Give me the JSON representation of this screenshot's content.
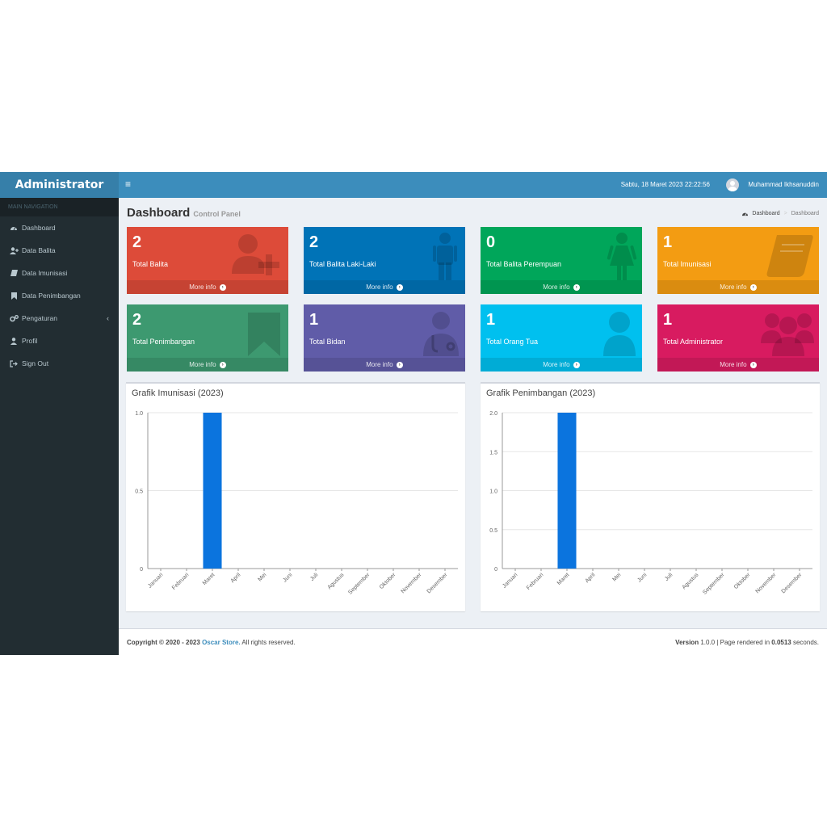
{
  "sidebar": {
    "brand": "Administrator",
    "header": "MAIN NAVIGATION",
    "items": [
      {
        "label": "Dashboard",
        "icon": "dashboard-icon"
      },
      {
        "label": "Data Balita",
        "icon": "user-plus-icon"
      },
      {
        "label": "Data Imunisasi",
        "icon": "book-icon"
      },
      {
        "label": "Data Penimbangan",
        "icon": "bookmark-icon"
      },
      {
        "label": "Pengaturan",
        "icon": "gears-icon"
      },
      {
        "label": "Profil",
        "icon": "user-icon"
      },
      {
        "label": "Sign Out",
        "icon": "sign-out-icon"
      }
    ]
  },
  "header": {
    "toggle": "≡",
    "datetime": "Sabtu, 18 Maret 2023 22:22:56",
    "user": "Muhammad Ikhsanuddin"
  },
  "page": {
    "title": "Dashboard",
    "subtitle": "Control Panel",
    "breadcrumb_home": "Dashboard",
    "breadcrumb_current": "Dashboard"
  },
  "boxes": [
    {
      "value": "2",
      "label": "Total Balita",
      "more": "More info",
      "color": "#dd4b39",
      "icon": "user-plus-icon"
    },
    {
      "value": "2",
      "label": "Total Balita Laki-Laki",
      "more": "More info",
      "color": "#0073b7",
      "icon": "male-icon"
    },
    {
      "value": "0",
      "label": "Total Balita Perempuan",
      "more": "More info",
      "color": "#00a65a",
      "icon": "female-icon"
    },
    {
      "value": "1",
      "label": "Total Imunisasi",
      "more": "More info",
      "color": "#f39c12",
      "icon": "book-icon"
    },
    {
      "value": "2",
      "label": "Total Penimbangan",
      "more": "More info",
      "color": "#3d9970",
      "icon": "bookmark-icon"
    },
    {
      "value": "1",
      "label": "Total Bidan",
      "more": "More info",
      "color": "#605ca8",
      "icon": "user-md-icon"
    },
    {
      "value": "1",
      "label": "Total Orang Tua",
      "more": "More info",
      "color": "#00c0ef",
      "icon": "user-icon"
    },
    {
      "value": "1",
      "label": "Total Administrator",
      "more": "More info",
      "color": "#d81b60",
      "icon": "users-icon"
    }
  ],
  "footer": {
    "copyright": "Copyright © 2020 - 2023",
    "store": "Oscar Store.",
    "rights": "All rights reserved.",
    "version_label": "Version",
    "version": "1.0.0",
    "rendered_prefix": "| Page rendered in",
    "rendered_time": "0.0513",
    "rendered_suffix": "seconds."
  },
  "chart_data": [
    {
      "type": "bar",
      "title": "Grafik Imunisasi (2023)",
      "categories": [
        "Januari",
        "Februari",
        "Maret",
        "April",
        "Mei",
        "Juni",
        "Juli",
        "Agustus",
        "September",
        "Oktober",
        "November",
        "Desember"
      ],
      "values": [
        0,
        0,
        1,
        0,
        0,
        0,
        0,
        0,
        0,
        0,
        0,
        0
      ],
      "ylim": [
        0,
        1
      ],
      "yticks": [
        "0",
        "0.5",
        "1.0"
      ],
      "ytick_values": [
        0,
        0.5,
        1
      ],
      "color": "#0b74de"
    },
    {
      "type": "bar",
      "title": "Grafik Penimbangan (2023)",
      "categories": [
        "Januari",
        "Februari",
        "Maret",
        "April",
        "Mei",
        "Juni",
        "Juli",
        "Agustus",
        "September",
        "Oktober",
        "November",
        "Desember"
      ],
      "values": [
        0,
        0,
        2,
        0,
        0,
        0,
        0,
        0,
        0,
        0,
        0,
        0
      ],
      "ylim": [
        0,
        2
      ],
      "yticks": [
        "0",
        "0.5",
        "1.0",
        "1.5",
        "2.0"
      ],
      "ytick_values": [
        0,
        0.5,
        1,
        1.5,
        2
      ],
      "color": "#0b74de"
    }
  ]
}
